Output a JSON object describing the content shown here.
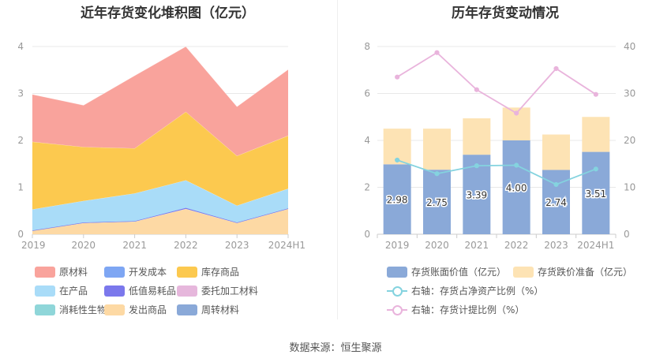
{
  "source": "数据来源：恒生聚源",
  "colors": {
    "raw_material": "#f9a39c",
    "dev_cost": "#7ea6f3",
    "finished_goods": "#fcc94f",
    "wip": "#a9dcf8",
    "low_value": "#7b78ec",
    "consigned": "#e6b7dc",
    "bio_asset": "#8fd6d9",
    "shipped": "#fdd9a4",
    "turnover": "#8aa9d8",
    "book_value": "#8aa9d8",
    "impairment": "#fde3b4",
    "ratio_net": "#84d3df",
    "ratio_provision": "#e9b4dc"
  },
  "chart_data": [
    {
      "type": "area",
      "title": "近年存货变化堆积图（亿元）",
      "x": [
        "2019",
        "2020",
        "2021",
        "2022",
        "2023",
        "2024H1"
      ],
      "yticks": [
        "0",
        "1",
        "2",
        "3",
        "4"
      ],
      "ylim": [
        0,
        4
      ],
      "legend_placement": "bottom",
      "grid": true,
      "series": [
        {
          "name": "发出商品",
          "color": "#fdd9a4",
          "values": [
            0.08,
            0.24,
            0.27,
            0.54,
            0.24,
            0.54
          ]
        },
        {
          "name": "低值易耗品",
          "color": "#7b78ec",
          "values": [
            0.0,
            0.01,
            0.01,
            0.02,
            0.01,
            0.01
          ]
        },
        {
          "name": "在产品",
          "color": "#a9dcf8",
          "values": [
            0.45,
            0.46,
            0.59,
            0.59,
            0.36,
            0.42
          ]
        },
        {
          "name": "库存商品",
          "color": "#fcc94f",
          "values": [
            1.44,
            1.15,
            0.96,
            1.46,
            1.06,
            1.13
          ]
        },
        {
          "name": "原材料",
          "color": "#f9a39c",
          "values": [
            1.01,
            0.89,
            1.55,
            1.39,
            1.05,
            1.41
          ]
        }
      ],
      "legend": [
        {
          "name": "原材料",
          "color": "#f9a39c"
        },
        {
          "name": "开发成本",
          "color": "#7ea6f3"
        },
        {
          "name": "库存商品",
          "color": "#fcc94f"
        },
        {
          "name": "在产品",
          "color": "#a9dcf8"
        },
        {
          "name": "低值易耗品",
          "color": "#7b78ec"
        },
        {
          "name": "委托加工材料",
          "color": "#e6b7dc"
        },
        {
          "name": "消耗性生物资产",
          "color": "#8fd6d9"
        },
        {
          "name": "发出商品",
          "color": "#fdd9a4"
        },
        {
          "name": "周转材料",
          "color": "#8aa9d8"
        }
      ]
    },
    {
      "type": "bar",
      "title": "历年存货变动情况",
      "categories": [
        "2019",
        "2020",
        "2021",
        "2022",
        "2023",
        "2024H1"
      ],
      "yticks_left": [
        "0",
        "2",
        "4",
        "6",
        "8"
      ],
      "ylim_left": [
        0,
        8
      ],
      "yticks_right": [
        "0",
        "10",
        "20",
        "30",
        "40"
      ],
      "ylim_right": [
        0,
        40
      ],
      "legend_placement": "bottom",
      "grid": true,
      "series": [
        {
          "name": "存货账面价值（亿元）",
          "color": "#8aa9d8",
          "values": [
            2.98,
            2.75,
            3.39,
            4.0,
            2.74,
            3.51
          ],
          "labels": [
            "2.98",
            "2.75",
            "3.39",
            "4.00",
            "2.74",
            "3.51"
          ]
        },
        {
          "name": "存货跌价准备（亿元）",
          "color": "#fde3b4",
          "values": [
            1.52,
            1.75,
            1.55,
            1.4,
            1.51,
            1.49
          ]
        },
        {
          "name": "右轴：存货占净资产比例（%）",
          "color": "#84d3df",
          "axis": "right",
          "values": [
            15.8,
            12.9,
            14.6,
            14.7,
            10.6,
            13.9
          ]
        },
        {
          "name": "右轴：存货计提比例（%）",
          "color": "#e9b4dc",
          "axis": "right",
          "values": [
            33.5,
            38.7,
            30.8,
            25.8,
            35.3,
            29.8
          ]
        }
      ]
    }
  ]
}
